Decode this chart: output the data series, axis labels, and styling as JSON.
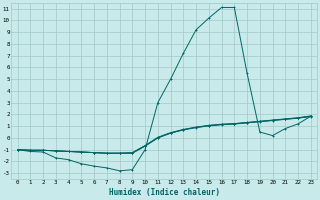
{
  "xlabel": "Humidex (Indice chaleur)",
  "bg_color": "#c8eaea",
  "grid_color": "#a0c8c8",
  "line_color": "#006666",
  "xlim": [
    -0.5,
    23.5
  ],
  "ylim": [
    -3.5,
    11.5
  ],
  "xticks": [
    0,
    1,
    2,
    3,
    4,
    5,
    6,
    7,
    8,
    9,
    10,
    11,
    12,
    13,
    14,
    15,
    16,
    17,
    18,
    19,
    20,
    21,
    22,
    23
  ],
  "yticks": [
    -3,
    -2,
    -1,
    0,
    1,
    2,
    3,
    4,
    5,
    6,
    7,
    8,
    9,
    10,
    11
  ],
  "line1_x": [
    0,
    1,
    2,
    3,
    4,
    5,
    6,
    7,
    8,
    9,
    10,
    11,
    12,
    13,
    14,
    15,
    16,
    17,
    18,
    19,
    20,
    21,
    22,
    23
  ],
  "line1_y": [
    -1,
    -1.15,
    -1.2,
    -1.7,
    -1.85,
    -2.2,
    -2.4,
    -2.55,
    -2.8,
    -2.7,
    -1.0,
    3.0,
    5.0,
    7.2,
    9.2,
    10.2,
    11.1,
    11.1,
    5.5,
    0.5,
    0.2,
    0.8,
    1.2,
    1.85
  ],
  "line2_x": [
    0,
    1,
    2,
    3,
    4,
    5,
    6,
    7,
    8,
    9,
    10,
    11,
    12,
    13,
    14,
    15,
    16,
    17,
    18,
    19,
    20,
    21,
    22,
    23
  ],
  "line2_y": [
    -1,
    -1.05,
    -1.05,
    -1.1,
    -1.15,
    -1.2,
    -1.25,
    -1.3,
    -1.3,
    -1.3,
    -0.7,
    0.0,
    0.4,
    0.7,
    0.9,
    1.05,
    1.15,
    1.2,
    1.3,
    1.4,
    1.5,
    1.6,
    1.7,
    1.85
  ],
  "line3_x": [
    0,
    1,
    2,
    3,
    4,
    5,
    6,
    7,
    8,
    9,
    10,
    11,
    12,
    13,
    14,
    15,
    16,
    17,
    18,
    19,
    20,
    21,
    22,
    23
  ],
  "line3_y": [
    -1,
    -1.05,
    -1.05,
    -1.1,
    -1.15,
    -1.2,
    -1.25,
    -1.3,
    -1.3,
    -1.25,
    -0.65,
    0.05,
    0.45,
    0.72,
    0.92,
    1.07,
    1.17,
    1.22,
    1.32,
    1.42,
    1.52,
    1.62,
    1.72,
    1.87
  ],
  "line4_x": [
    0,
    1,
    2,
    3,
    4,
    5,
    6,
    7,
    8,
    9,
    10,
    11,
    12,
    13,
    14,
    15,
    16,
    17,
    18,
    19,
    20,
    21,
    22,
    23
  ],
  "line4_y": [
    -1,
    -1.05,
    -1.05,
    -1.1,
    -1.15,
    -1.2,
    -1.25,
    -1.3,
    -1.3,
    -1.28,
    -0.68,
    0.02,
    0.42,
    0.68,
    0.88,
    1.02,
    1.12,
    1.18,
    1.28,
    1.38,
    1.48,
    1.58,
    1.68,
    1.82
  ]
}
